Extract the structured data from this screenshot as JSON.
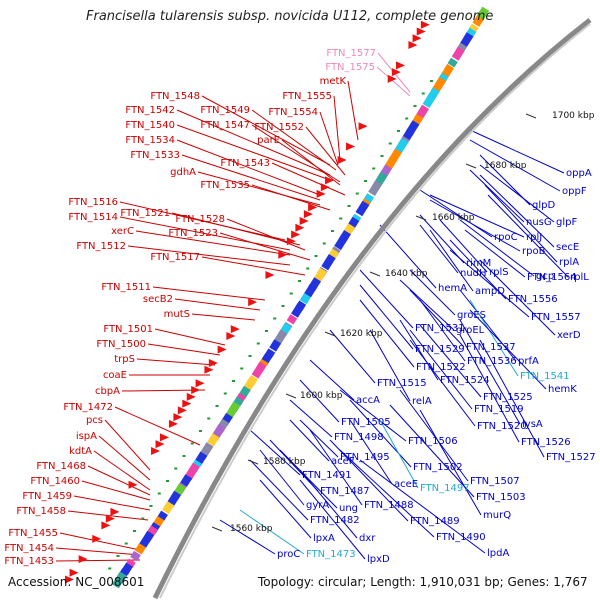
{
  "map": {
    "title": "Francisella tularensis subsp. novicida U112, complete genome",
    "accession": "Accession: NC_008601",
    "topology": "Topology: circular; Length: 1,910,031 bp; Genes: 1,767",
    "kbp_ticks": [
      "1700 kbp",
      "1680 kbp",
      "1660 kbp",
      "1640 kbp",
      "1620 kbp",
      "1600 kbp",
      "1580 kbp",
      "1560 kbp"
    ],
    "left_labels": [
      "FTN_1577",
      "FTN_1575",
      "metK",
      "FTN_1548",
      "FTN_1555",
      "FTN_1542",
      "FTN_1549",
      "FTN_1554",
      "FTN_1540",
      "FTN_1547",
      "FTN_1552",
      "FTN_1534",
      "parE",
      "FTN_1533",
      "FTN_1543",
      "gdhA",
      "FTN_1535",
      "FTN_1516",
      "FTN_1514",
      "FTN_1521",
      "FTN_1528",
      "xerC",
      "FTN_1523",
      "FTN_1512",
      "FTN_1517",
      "FTN_1511",
      "secB2",
      "mutS",
      "FTN_1501",
      "FTN_1500",
      "trpS",
      "coaE",
      "cbpA",
      "FTN_1472",
      "pcs",
      "ispA",
      "kdtA",
      "FTN_1468",
      "FTN_1460",
      "FTN_1459",
      "FTN_1458",
      "FTN_1455",
      "FTN_1454",
      "FTN_1453"
    ],
    "right_labels": [
      "oppA",
      "oppF",
      "glpD",
      "nusG",
      "glpF",
      "rpoC",
      "rplJ",
      "secE",
      "rpoB",
      "rplA",
      "rimM",
      "gcp",
      "rplL",
      "nudH",
      "rplS",
      "FTN_1564",
      "hemA",
      "ampD",
      "FTN_1556",
      "groES",
      "FTN_1557",
      "FTN_1531",
      "groEL",
      "xerD",
      "FTN_1529",
      "FTN_1537",
      "FTN_1522",
      "FTN_1536",
      "prfA",
      "FTN_1541",
      "FTN_1515",
      "FTN_1524",
      "hemK",
      "accA",
      "relA",
      "FTN_1525",
      "FTN_1519",
      "FTN_1505",
      "lysA",
      "FTN_1520",
      "FTN_1498",
      "FTN_1506",
      "FTN_1526",
      "FTN_1495",
      "FTN_1527",
      "aceF",
      "FTN_1502",
      "FTN_1507",
      "aceE",
      "FTN_1497",
      "FTN_1491",
      "FTN_1503",
      "FTN_1487",
      "FTN_1488",
      "murQ",
      "gyrA",
      "ung",
      "FTN_1489",
      "FTN_1482",
      "lpxA",
      "dxr",
      "FTN_1490",
      "proC",
      "FTN_1473",
      "lpdA",
      "lpxD"
    ],
    "colors": {
      "plus_strand": "#2233dd",
      "minus_strand": "#ee1111",
      "left_label": "#cc0000",
      "right_label": "#0000cc",
      "highlight_pink": "#ee88bb",
      "highlight_cyan": "#22aacc",
      "backbone": "#888888"
    }
  }
}
